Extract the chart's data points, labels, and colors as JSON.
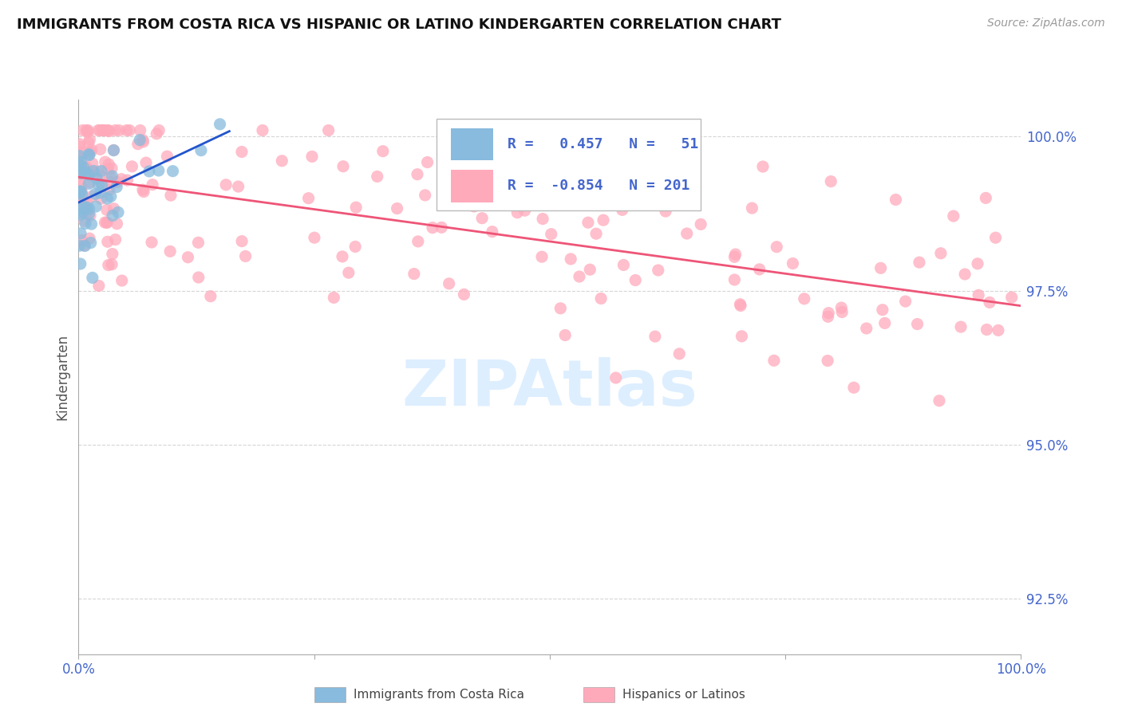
{
  "title": "IMMIGRANTS FROM COSTA RICA VS HISPANIC OR LATINO KINDERGARTEN CORRELATION CHART",
  "source": "Source: ZipAtlas.com",
  "ylabel": "Kindergarten",
  "legend_blue_R": "0.457",
  "legend_blue_N": "51",
  "legend_pink_R": "-0.854",
  "legend_pink_N": "201",
  "blue_color": "#88BBDD",
  "pink_color": "#FFAABB",
  "blue_line_color": "#2255CC",
  "pink_line_color": "#EE5577",
  "title_color": "#111111",
  "axis_label_color": "#4466CC",
  "background_color": "#FFFFFF",
  "watermark_color": "#DDEEFF",
  "grid_color": "#CCCCCC",
  "xlim": [
    0.0,
    1.0
  ],
  "ylim": [
    0.916,
    1.006
  ],
  "yticks": [
    0.925,
    0.95,
    0.975,
    1.0
  ],
  "ytick_labels": [
    "92.5%",
    "95.0%",
    "97.5%",
    "100.0%"
  ],
  "xticks": [
    0.0,
    0.25,
    0.5,
    0.75,
    1.0
  ],
  "xtick_labels": [
    "0.0%",
    "",
    "",
    "",
    "100.0%"
  ]
}
